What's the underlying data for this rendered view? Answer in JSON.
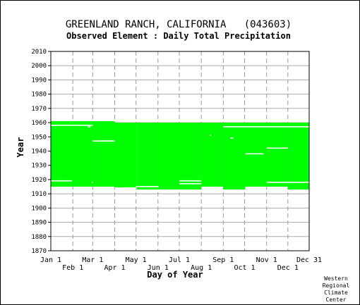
{
  "chart_data": {
    "type": "heatmap",
    "title": "GREENLAND RANCH, CALIFORNIA   (043603)",
    "subtitle": "Observed Element : Daily Total Precipitation",
    "xlabel": "Day of Year",
    "ylabel": "Year",
    "ylim": [
      1870,
      2010
    ],
    "yticks": [
      1870,
      1880,
      1890,
      1900,
      1910,
      1920,
      1930,
      1940,
      1950,
      1960,
      1970,
      1980,
      1990,
      2000,
      2010
    ],
    "xlim": [
      1,
      365
    ],
    "xticks_top": [
      {
        "label": "Jan 1",
        "day": 1
      },
      {
        "label": "Mar 1",
        "day": 60
      },
      {
        "label": "May 1",
        "day": 121
      },
      {
        "label": "Jul 1",
        "day": 182
      },
      {
        "label": "Sep 1",
        "day": 244
      },
      {
        "label": "Nov 1",
        "day": 305
      },
      {
        "label": "Dec 31",
        "day": 365
      }
    ],
    "xticks_bottom": [
      {
        "label": "Feb 1",
        "day": 32
      },
      {
        "label": "Apr 1",
        "day": 91
      },
      {
        "label": "Jun 1",
        "day": 152
      },
      {
        "label": "Aug 1",
        "day": 213
      },
      {
        "label": "Oct 1",
        "day": 274
      },
      {
        "label": "Dec 1",
        "day": 335
      }
    ],
    "grid": true,
    "data_color": "#00ff00",
    "segments": [
      {
        "start_day": 1,
        "end_day": 59,
        "first_year": 1915,
        "last_year": 1961
      },
      {
        "start_day": 60,
        "end_day": 90,
        "first_year": 1915,
        "last_year": 1961
      },
      {
        "start_day": 91,
        "end_day": 121,
        "first_year": 1914,
        "last_year": 1960
      },
      {
        "start_day": 122,
        "end_day": 151,
        "first_year": 1913,
        "last_year": 1960
      },
      {
        "start_day": 152,
        "end_day": 212,
        "first_year": 1913,
        "last_year": 1960
      },
      {
        "start_day": 213,
        "end_day": 243,
        "first_year": 1915,
        "last_year": 1960
      },
      {
        "start_day": 244,
        "end_day": 274,
        "first_year": 1913,
        "last_year": 1960
      },
      {
        "start_day": 275,
        "end_day": 334,
        "first_year": 1915,
        "last_year": 1960
      },
      {
        "start_day": 335,
        "end_day": 365,
        "first_year": 1913,
        "last_year": 1960
      }
    ],
    "missing": [
      {
        "start_day": 1,
        "end_day": 59,
        "year": 1958
      },
      {
        "start_day": 1,
        "end_day": 30,
        "year": 1919
      },
      {
        "start_day": 53,
        "end_day": 56,
        "year": 1957
      },
      {
        "start_day": 59,
        "end_day": 59,
        "year": 1918
      },
      {
        "start_day": 60,
        "end_day": 90,
        "year": 1947
      },
      {
        "start_day": 91,
        "end_day": 121,
        "year": 1914
      },
      {
        "start_day": 121,
        "end_day": 152,
        "year": 1915
      },
      {
        "start_day": 182,
        "end_day": 212,
        "year": 1919
      },
      {
        "start_day": 182,
        "end_day": 212,
        "year": 1917
      },
      {
        "start_day": 225,
        "end_day": 226,
        "year": 1951
      },
      {
        "start_day": 244,
        "end_day": 365,
        "year": 1957
      },
      {
        "start_day": 254,
        "end_day": 257,
        "year": 1949
      },
      {
        "start_day": 275,
        "end_day": 300,
        "year": 1938
      },
      {
        "start_day": 305,
        "end_day": 334,
        "year": 1942
      },
      {
        "start_day": 305,
        "end_day": 365,
        "year": 1918
      }
    ]
  },
  "credit": [
    "Western",
    "Regional",
    "Climate",
    "Center"
  ]
}
